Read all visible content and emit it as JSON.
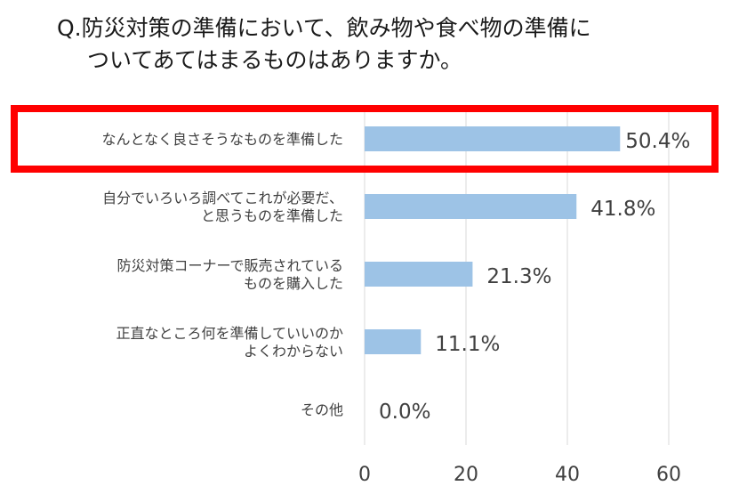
{
  "question": {
    "line1": "Q.防災対策の準備において、飲み物や食べ物の準備に",
    "line2": "ついてあてはまるものはありますか。"
  },
  "colors": {
    "bar": "#9dc3e6",
    "highlight": "#ff0000",
    "grid": "#d9d9d9",
    "text": "#404040"
  },
  "chart_data": {
    "type": "bar",
    "orientation": "horizontal",
    "categories": [
      [
        "なんとなく良さそうなものを準備した"
      ],
      [
        "自分でいろいろ調べてこれが必要だ、",
        "と思うものを準備した"
      ],
      [
        "防災対策コーナーで販売されている",
        "ものを購入した"
      ],
      [
        "正直なところ何を準備していいのか",
        "よくわからない"
      ],
      [
        "その他"
      ]
    ],
    "values": [
      50.4,
      41.8,
      21.3,
      11.1,
      0.0
    ],
    "value_labels": [
      "50.4%",
      "41.8%",
      "21.3%",
      "11.1%",
      "0.0%"
    ],
    "xlim": [
      0,
      60
    ],
    "xticks": [
      "0",
      "20",
      "40",
      "60"
    ],
    "grid": true,
    "highlighted_category_index": 0
  }
}
